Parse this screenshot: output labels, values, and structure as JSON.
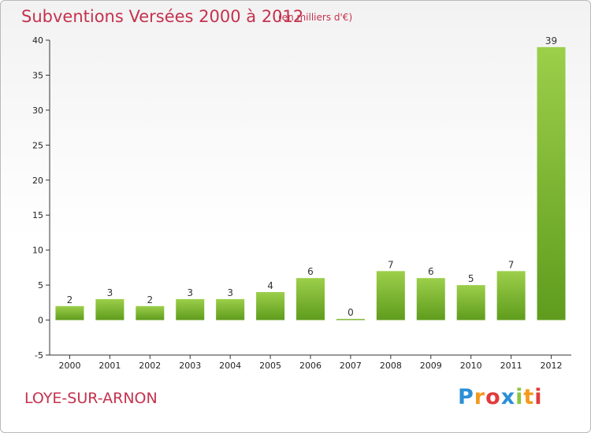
{
  "header": {
    "title": "Subventions Versées 2000 à 2012",
    "subtitle": "(en milliers d'€)"
  },
  "footer": {
    "commune": "LOYE-SUR-ARNON",
    "logo": {
      "letters": [
        "P",
        "r",
        "o",
        "x",
        "i",
        "t",
        "i"
      ],
      "colors": [
        "#2b8fd6",
        "#f39a1e",
        "#e23b3b",
        "#2b8fd6",
        "#8cc63e",
        "#f39a1e",
        "#e23b3b"
      ]
    }
  },
  "chart_data": {
    "type": "bar",
    "categories": [
      "2000",
      "2001",
      "2002",
      "2003",
      "2004",
      "2005",
      "2006",
      "2007",
      "2008",
      "2009",
      "2010",
      "2011",
      "2012"
    ],
    "values": [
      2,
      3,
      2,
      3,
      3,
      4,
      6,
      0,
      7,
      6,
      5,
      7,
      39
    ],
    "data_labels": [
      "2",
      "3",
      "2",
      "3",
      "3",
      "4",
      "6",
      "0",
      "7",
      "6",
      "5",
      "7",
      "39"
    ],
    "ylim": [
      -5,
      40
    ],
    "yticks": [
      -5,
      0,
      5,
      10,
      15,
      20,
      25,
      30,
      35,
      40
    ],
    "bar_color_top": "#9ccf4a",
    "bar_color_bottom": "#5f9c1d",
    "grid": false
  }
}
